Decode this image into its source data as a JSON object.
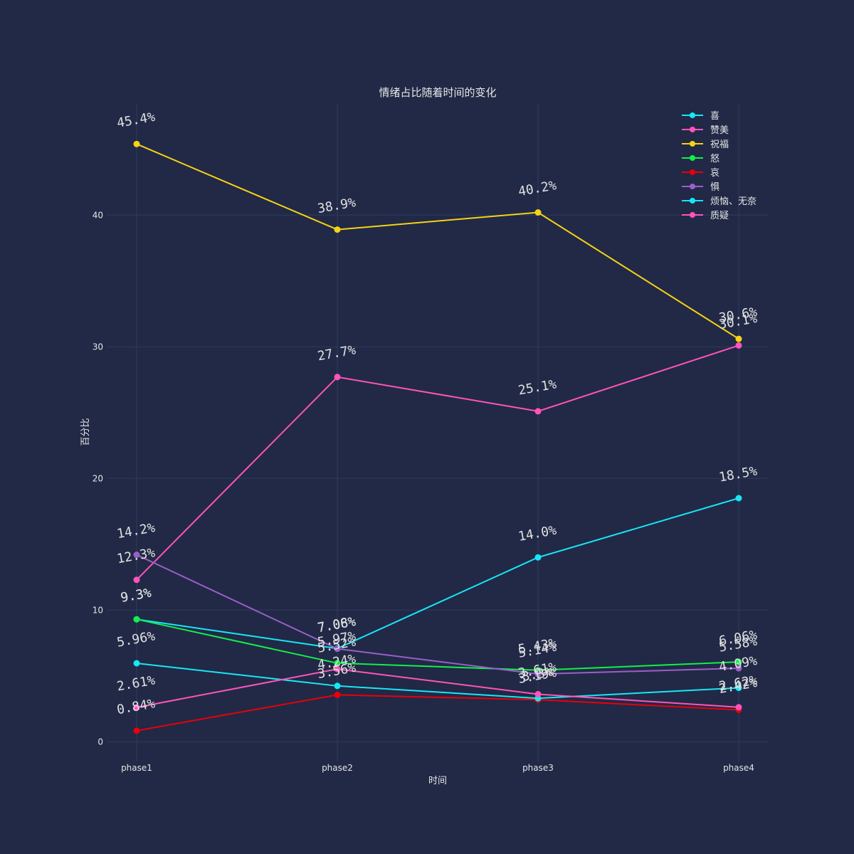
{
  "chart_data": {
    "type": "line",
    "title": "情绪占比随着时间的变化",
    "xlabel": "时间",
    "ylabel": "百分比",
    "categories": [
      "phase1",
      "phase2",
      "phase3",
      "phase4"
    ],
    "ylim": [
      -1.5,
      48.5
    ],
    "yticks": [
      0,
      10,
      20,
      30,
      40
    ],
    "grid": true,
    "legend_position": "top-right",
    "series": [
      {
        "name": "喜",
        "color": "#18e6f5",
        "values": [
          9.3,
          7.08,
          14.0,
          18.5
        ],
        "labels": [
          "9.3%",
          "7.08%",
          "14.0%",
          "18.5%"
        ]
      },
      {
        "name": "赞美",
        "color": "#ff54b8",
        "values": [
          12.3,
          27.7,
          25.1,
          30.1
        ],
        "labels": [
          "12.3%",
          "27.7%",
          "25.1%",
          "30.1%"
        ]
      },
      {
        "name": "祝福",
        "color": "#f5d315",
        "values": [
          45.4,
          38.9,
          40.2,
          30.6
        ],
        "labels": [
          "45.4%",
          "38.9%",
          "40.2%",
          "30.6%"
        ]
      },
      {
        "name": "怒",
        "color": "#12f04a",
        "values": [
          9.3,
          5.97,
          5.43,
          6.06
        ],
        "labels": [
          "9.3%",
          "5.97%",
          "5.43%",
          "6.06%"
        ]
      },
      {
        "name": "哀",
        "color": "#e8000b",
        "values": [
          0.84,
          3.56,
          3.19,
          2.42
        ],
        "labels": [
          "0.84%",
          "3.56%",
          "3.19%",
          "2.42%"
        ]
      },
      {
        "name": "惧",
        "color": "#9a5fc8",
        "values": [
          14.2,
          7.06,
          5.14,
          5.58
        ],
        "labels": [
          "14.2%",
          "7.06%",
          "5.14%",
          "5.58%"
        ]
      },
      {
        "name": "烦恼、无奈",
        "color": "#18e6f5",
        "values": [
          5.96,
          4.24,
          3.3,
          4.09
        ],
        "labels": [
          "5.96%",
          "4.24%",
          "3.3%",
          "4.09%"
        ]
      },
      {
        "name": "质疑",
        "color": "#ff54b8",
        "values": [
          2.61,
          5.52,
          3.61,
          2.62
        ],
        "labels": [
          "2.61%",
          "5.52%",
          "3.61%",
          "2.62%"
        ]
      }
    ]
  }
}
